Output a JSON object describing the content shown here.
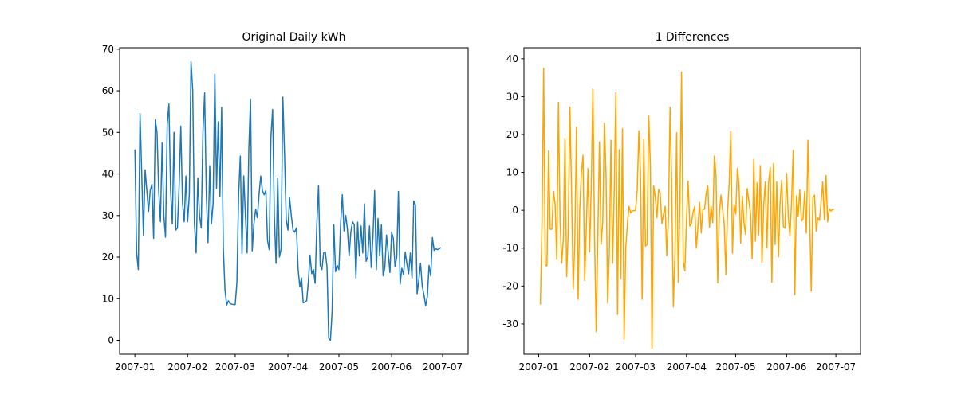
{
  "chart_data": [
    {
      "type": "line",
      "title": "Original Daily kWh",
      "x": [
        "2007-01-01",
        "2007-01-02",
        "2007-01-03",
        "2007-01-04",
        "2007-01-05",
        "2007-01-06",
        "2007-01-07",
        "2007-01-08",
        "2007-01-09",
        "2007-01-10",
        "2007-01-11",
        "2007-01-12",
        "2007-01-13",
        "2007-01-14",
        "2007-01-15",
        "2007-01-16",
        "2007-01-17",
        "2007-01-18",
        "2007-01-19",
        "2007-01-20",
        "2007-01-21",
        "2007-01-22",
        "2007-01-23",
        "2007-01-24",
        "2007-01-25",
        "2007-01-26",
        "2007-01-27",
        "2007-01-28",
        "2007-01-29",
        "2007-01-30",
        "2007-01-31",
        "2007-02-01",
        "2007-02-02",
        "2007-02-03",
        "2007-02-04",
        "2007-02-05",
        "2007-02-06",
        "2007-02-07",
        "2007-02-08",
        "2007-02-09",
        "2007-02-10",
        "2007-02-11",
        "2007-02-12",
        "2007-02-13",
        "2007-02-14",
        "2007-02-15",
        "2007-02-16",
        "2007-02-17",
        "2007-02-18",
        "2007-02-19",
        "2007-02-20",
        "2007-02-21",
        "2007-02-22",
        "2007-02-23",
        "2007-02-24",
        "2007-02-25",
        "2007-02-26",
        "2007-02-27",
        "2007-02-28",
        "2007-03-01",
        "2007-03-02",
        "2007-03-03",
        "2007-03-04",
        "2007-03-05",
        "2007-03-06",
        "2007-03-07",
        "2007-03-08",
        "2007-03-09",
        "2007-03-10",
        "2007-03-11",
        "2007-03-12",
        "2007-03-13",
        "2007-03-14",
        "2007-03-15",
        "2007-03-16",
        "2007-03-17",
        "2007-03-18",
        "2007-03-19",
        "2007-03-20",
        "2007-03-21",
        "2007-03-22",
        "2007-03-23",
        "2007-03-24",
        "2007-03-25",
        "2007-03-26",
        "2007-03-27",
        "2007-03-28",
        "2007-03-29",
        "2007-03-30",
        "2007-03-31",
        "2007-04-01",
        "2007-04-02",
        "2007-04-03",
        "2007-04-04",
        "2007-04-05",
        "2007-04-06",
        "2007-04-07",
        "2007-04-08",
        "2007-04-09",
        "2007-04-10",
        "2007-04-11",
        "2007-04-12",
        "2007-04-13",
        "2007-04-14",
        "2007-04-15",
        "2007-04-16",
        "2007-04-17",
        "2007-04-18",
        "2007-04-19",
        "2007-04-20",
        "2007-04-21",
        "2007-04-22",
        "2007-04-23",
        "2007-04-24",
        "2007-04-25",
        "2007-04-26",
        "2007-04-27",
        "2007-04-28",
        "2007-04-29",
        "2007-04-30",
        "2007-05-01",
        "2007-05-02",
        "2007-05-03",
        "2007-05-04",
        "2007-05-05",
        "2007-05-06",
        "2007-05-07",
        "2007-05-08",
        "2007-05-09",
        "2007-05-10",
        "2007-05-11",
        "2007-05-12",
        "2007-05-13",
        "2007-05-14",
        "2007-05-15",
        "2007-05-16",
        "2007-05-17",
        "2007-05-18",
        "2007-05-19",
        "2007-05-20",
        "2007-05-21",
        "2007-05-22",
        "2007-05-23",
        "2007-05-24",
        "2007-05-25",
        "2007-05-26",
        "2007-05-27",
        "2007-05-28",
        "2007-05-29",
        "2007-05-30",
        "2007-05-31",
        "2007-06-01",
        "2007-06-02",
        "2007-06-03",
        "2007-06-04",
        "2007-06-05",
        "2007-06-06",
        "2007-06-07",
        "2007-06-08",
        "2007-06-09",
        "2007-06-10",
        "2007-06-11",
        "2007-06-12",
        "2007-06-13",
        "2007-06-14",
        "2007-06-15",
        "2007-06-16",
        "2007-06-17",
        "2007-06-18",
        "2007-06-19",
        "2007-06-20",
        "2007-06-21",
        "2007-06-22",
        "2007-06-23",
        "2007-06-24",
        "2007-06-25",
        "2007-06-26",
        "2007-06-27",
        "2007-06-28",
        "2007-06-29",
        "2007-06-30"
      ],
      "series": [
        {
          "color": "#1f77b4",
          "values": [
            45.9,
            21,
            17,
            54.5,
            40,
            25.3,
            41,
            36,
            31,
            36,
            37.5,
            24.5,
            53,
            50,
            36,
            28.5,
            47.5,
            30,
            24.8,
            52,
            56.8,
            36,
            28,
            50,
            26.5,
            27,
            37,
            51.5,
            33,
            28.5,
            39.5,
            28.5,
            35,
            67,
            60,
            28,
            21,
            39,
            30,
            27,
            50,
            59.5,
            35,
            23.5,
            42,
            28,
            33,
            64,
            36.5,
            52.5,
            34.5,
            56,
            22,
            12,
            8.5,
            9.5,
            8.8,
            8.7,
            8.6,
            8.6,
            14,
            35,
            44.3,
            20.8,
            39.5,
            30,
            21,
            46,
            58,
            21.5,
            28,
            31.5,
            29.5,
            35,
            39.5,
            36,
            35,
            36,
            24,
            21.8,
            49,
            55.5,
            30,
            18.5,
            39,
            20,
            22,
            58.5,
            45,
            29,
            26.5,
            34.2,
            30,
            26.5,
            26,
            27,
            17,
            12.9,
            15,
            9,
            9.2,
            9.5,
            14,
            20.5,
            16,
            17,
            13.7,
            28,
            37.2,
            18,
            17,
            21,
            21.2,
            17.5,
            0.5,
            0,
            7,
            27.8,
            16.5,
            18,
            17,
            28,
            35,
            26.3,
            30,
            26.7,
            20.3,
            26,
            28.5,
            27.8,
            15,
            28.4,
            20.3,
            27.5,
            21,
            32.8,
            19,
            20,
            27.5,
            17.5,
            24.7,
            36,
            17,
            29.3,
            20.3,
            27.8,
            15.5,
            17.4,
            25.3,
            21,
            16.3,
            26,
            24.5,
            17.7,
            20,
            35.8,
            13.5,
            17.3,
            15.8,
            21.2,
            18.3,
            16,
            21,
            15,
            33.5,
            32.5,
            11.2,
            14.5,
            18.5,
            13,
            11,
            8.3,
            10.5,
            18,
            15.5,
            24.7,
            21.6,
            22,
            21.8,
            22,
            22.3
          ]
        }
      ],
      "xlim": [
        "2006-12-23",
        "2007-07-16"
      ],
      "xticks": [
        {
          "value": "2007-01-01",
          "label": "2007-01"
        },
        {
          "value": "2007-02-01",
          "label": "2007-02"
        },
        {
          "value": "2007-03-01",
          "label": "2007-03"
        },
        {
          "value": "2007-04-01",
          "label": "2007-04"
        },
        {
          "value": "2007-05-01",
          "label": "2007-05"
        },
        {
          "value": "2007-06-01",
          "label": "2007-06"
        },
        {
          "value": "2007-07-01",
          "label": "2007-07"
        }
      ],
      "ylim": [
        -3.35,
        70.35
      ],
      "yticks": [
        0,
        10,
        20,
        30,
        40,
        50,
        60,
        70
      ]
    },
    {
      "type": "line",
      "title": "1 Differences",
      "x": [
        "2007-01-02",
        "2007-01-03",
        "2007-01-04",
        "2007-01-05",
        "2007-01-06",
        "2007-01-07",
        "2007-01-08",
        "2007-01-09",
        "2007-01-10",
        "2007-01-11",
        "2007-01-12",
        "2007-01-13",
        "2007-01-14",
        "2007-01-15",
        "2007-01-16",
        "2007-01-17",
        "2007-01-18",
        "2007-01-19",
        "2007-01-20",
        "2007-01-21",
        "2007-01-22",
        "2007-01-23",
        "2007-01-24",
        "2007-01-25",
        "2007-01-26",
        "2007-01-27",
        "2007-01-28",
        "2007-01-29",
        "2007-01-30",
        "2007-01-31",
        "2007-02-01",
        "2007-02-02",
        "2007-02-03",
        "2007-02-04",
        "2007-02-05",
        "2007-02-06",
        "2007-02-07",
        "2007-02-08",
        "2007-02-09",
        "2007-02-10",
        "2007-02-11",
        "2007-02-12",
        "2007-02-13",
        "2007-02-14",
        "2007-02-15",
        "2007-02-16",
        "2007-02-17",
        "2007-02-18",
        "2007-02-19",
        "2007-02-20",
        "2007-02-21",
        "2007-02-22",
        "2007-02-23",
        "2007-02-24",
        "2007-02-25",
        "2007-02-26",
        "2007-02-27",
        "2007-02-28",
        "2007-03-01",
        "2007-03-02",
        "2007-03-03",
        "2007-03-04",
        "2007-03-05",
        "2007-03-06",
        "2007-03-07",
        "2007-03-08",
        "2007-03-09",
        "2007-03-10",
        "2007-03-11",
        "2007-03-12",
        "2007-03-13",
        "2007-03-14",
        "2007-03-15",
        "2007-03-16",
        "2007-03-17",
        "2007-03-18",
        "2007-03-19",
        "2007-03-20",
        "2007-03-21",
        "2007-03-22",
        "2007-03-23",
        "2007-03-24",
        "2007-03-25",
        "2007-03-26",
        "2007-03-27",
        "2007-03-28",
        "2007-03-29",
        "2007-03-30",
        "2007-03-31",
        "2007-04-01",
        "2007-04-02",
        "2007-04-03",
        "2007-04-04",
        "2007-04-05",
        "2007-04-06",
        "2007-04-07",
        "2007-04-08",
        "2007-04-09",
        "2007-04-10",
        "2007-04-11",
        "2007-04-12",
        "2007-04-13",
        "2007-04-14",
        "2007-04-15",
        "2007-04-16",
        "2007-04-17",
        "2007-04-18",
        "2007-04-19",
        "2007-04-20",
        "2007-04-21",
        "2007-04-22",
        "2007-04-23",
        "2007-04-24",
        "2007-04-25",
        "2007-04-26",
        "2007-04-27",
        "2007-04-28",
        "2007-04-29",
        "2007-04-30",
        "2007-05-01",
        "2007-05-02",
        "2007-05-03",
        "2007-05-04",
        "2007-05-05",
        "2007-05-06",
        "2007-05-07",
        "2007-05-08",
        "2007-05-09",
        "2007-05-10",
        "2007-05-11",
        "2007-05-12",
        "2007-05-13",
        "2007-05-14",
        "2007-05-15",
        "2007-05-16",
        "2007-05-17",
        "2007-05-18",
        "2007-05-19",
        "2007-05-20",
        "2007-05-21",
        "2007-05-22",
        "2007-05-23",
        "2007-05-24",
        "2007-05-25",
        "2007-05-26",
        "2007-05-27",
        "2007-05-28",
        "2007-05-29",
        "2007-05-30",
        "2007-05-31",
        "2007-06-01",
        "2007-06-02",
        "2007-06-03",
        "2007-06-04",
        "2007-06-05",
        "2007-06-06",
        "2007-06-07",
        "2007-06-08",
        "2007-06-09",
        "2007-06-10",
        "2007-06-11",
        "2007-06-12",
        "2007-06-13",
        "2007-06-14",
        "2007-06-15",
        "2007-06-16",
        "2007-06-17",
        "2007-06-18",
        "2007-06-19",
        "2007-06-20",
        "2007-06-21",
        "2007-06-22",
        "2007-06-23",
        "2007-06-24",
        "2007-06-25",
        "2007-06-26",
        "2007-06-27",
        "2007-06-28",
        "2007-06-29",
        "2007-06-30"
      ],
      "series": [
        {
          "color": "#ffa500",
          "values": [
            -24.9,
            -4,
            37.5,
            -14.5,
            -14.7,
            15.7,
            -5,
            -5,
            5,
            1.5,
            -13,
            28.5,
            -3,
            -14,
            -7.5,
            19,
            -17.5,
            -5.2,
            27.2,
            4.8,
            -20.8,
            -8,
            22,
            -23.5,
            0.5,
            10,
            14.5,
            -18.5,
            -4.5,
            11,
            -11,
            6.5,
            32,
            -7,
            -32,
            -7,
            18,
            -9,
            -3,
            23,
            9.5,
            -24.5,
            -11.5,
            18.5,
            -14,
            5,
            31,
            -27.5,
            16,
            -18,
            21.5,
            -34,
            -10,
            -3.5,
            1,
            -0.7,
            -0.1,
            -0.1,
            0,
            5.4,
            21,
            9.3,
            -23.5,
            18.7,
            -9.5,
            -9,
            25,
            12,
            -36.5,
            6.5,
            3.5,
            -2,
            5.5,
            4.5,
            -3.5,
            -1,
            1,
            -12,
            -2.2,
            27.2,
            6.5,
            -25.5,
            -11.5,
            20.5,
            -19,
            2,
            36.5,
            -13.5,
            -16,
            -2.5,
            7.7,
            -4.2,
            -3.5,
            -0.5,
            1,
            -10,
            -4.1,
            2.1,
            -6,
            0.2,
            0.3,
            4.5,
            6.5,
            -4.5,
            1,
            -3.3,
            14.3,
            9.2,
            -19.2,
            -1,
            4,
            0.2,
            -3.7,
            -17,
            -0.5,
            7,
            20.8,
            -11.3,
            1.5,
            -1,
            11,
            7,
            -8.7,
            3.7,
            -3.3,
            -6.4,
            5.7,
            2.5,
            -0.7,
            -12.8,
            13.4,
            -8.1,
            7.2,
            -6.5,
            11.8,
            -13.8,
            1,
            7.5,
            -10,
            7.2,
            11.3,
            -19,
            12.3,
            -9,
            7.5,
            -12.3,
            1.9,
            7.9,
            -4.3,
            -4.7,
            9.7,
            -1.5,
            -6.8,
            2.3,
            15.8,
            -22.3,
            3.8,
            -1.5,
            5.4,
            -2.9,
            -2.3,
            5,
            -6,
            18.5,
            -1,
            -21.3,
            3.3,
            4,
            -5.5,
            -2,
            -2.7,
            2.2,
            7.5,
            -2.5,
            9.2,
            -3.1,
            0.4,
            -0.2,
            0.2,
            0.3
          ]
        }
      ],
      "xlim": [
        "2006-12-23",
        "2007-07-16"
      ],
      "xticks": [
        {
          "value": "2007-01-01",
          "label": "2007-01"
        },
        {
          "value": "2007-02-01",
          "label": "2007-02"
        },
        {
          "value": "2007-03-01",
          "label": "2007-03"
        },
        {
          "value": "2007-04-01",
          "label": "2007-04"
        },
        {
          "value": "2007-05-01",
          "label": "2007-05"
        },
        {
          "value": "2007-06-01",
          "label": "2007-06"
        },
        {
          "value": "2007-07-01",
          "label": "2007-07"
        }
      ],
      "ylim": [
        -38,
        42.9
      ],
      "yticks": [
        -30,
        -20,
        -10,
        0,
        10,
        20,
        30,
        40
      ]
    }
  ]
}
